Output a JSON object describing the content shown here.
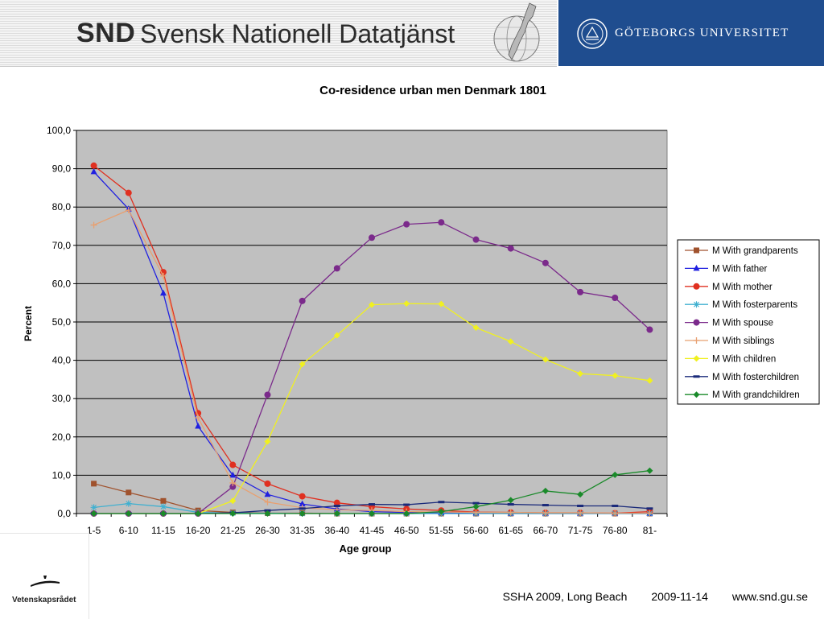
{
  "header": {
    "snd_abbr": "SND",
    "snd_name": "Svensk Nationell Datatjänst",
    "university": "GÖTEBORGS UNIVERSITET"
  },
  "footer": {
    "conference": "SSHA 2009, Long Beach",
    "date": "2009-11-14",
    "url": "www.snd.gu.se",
    "funder": "Vetenskapsrådet"
  },
  "colors": {
    "plot_bg": "#c0c0c0",
    "header_blue": "#1f4d8f"
  },
  "chart_data": {
    "type": "line",
    "title": "Co-residence urban men Denmark 1801",
    "xlabel": "Age group",
    "ylabel": "Percent",
    "ylim": [
      0,
      100
    ],
    "yticks": [
      "0,0",
      "10,0",
      "20,0",
      "30,0",
      "40,0",
      "50,0",
      "60,0",
      "70,0",
      "80,0",
      "90,0",
      "100,0"
    ],
    "grid": true,
    "legend_position": "right",
    "categories": [
      "1-5",
      "6-10",
      "11-15",
      "16-20",
      "21-25",
      "26-30",
      "31-35",
      "36-40",
      "41-45",
      "46-50",
      "51-55",
      "56-60",
      "61-65",
      "66-70",
      "71-75",
      "76-80",
      "81-"
    ],
    "series": [
      {
        "name": "M With grandparents",
        "color": "#a0522d",
        "marker": "square",
        "values": [
          7.8,
          5.5,
          3.3,
          0.8,
          0.3,
          0.1,
          0.1,
          0.0,
          0.0,
          0.0,
          0.0,
          0.0,
          0.0,
          0.0,
          0.0,
          0.0,
          0.0
        ]
      },
      {
        "name": "M With father",
        "color": "#2020e0",
        "marker": "triangle",
        "values": [
          89.2,
          79.5,
          57.5,
          22.8,
          10.0,
          5.0,
          2.5,
          1.2,
          0.5,
          0.3,
          0.2,
          0.1,
          0.0,
          0.0,
          0.0,
          0.0,
          0.0
        ]
      },
      {
        "name": "M With mother",
        "color": "#e03020",
        "marker": "circle",
        "values": [
          90.8,
          83.7,
          63.0,
          26.2,
          12.7,
          7.8,
          4.5,
          2.8,
          1.8,
          1.2,
          0.8,
          0.4,
          0.3,
          0.2,
          0.2,
          0.1,
          0.5
        ]
      },
      {
        "name": "M With fosterparents",
        "color": "#40b0d0",
        "marker": "star",
        "values": [
          1.6,
          2.6,
          1.8,
          0.3,
          0.1,
          0.1,
          0.0,
          0.0,
          0.0,
          0.0,
          0.0,
          0.0,
          0.0,
          0.0,
          0.0,
          0.0,
          0.0
        ]
      },
      {
        "name": "M With spouse",
        "color": "#7b2a8b",
        "marker": "circle",
        "values": [
          0.0,
          0.0,
          0.0,
          0.0,
          7.0,
          31.0,
          55.5,
          64.0,
          72.0,
          75.5,
          76.0,
          71.5,
          69.2,
          65.4,
          57.8,
          56.3,
          48.0
        ]
      },
      {
        "name": "M With siblings",
        "color": "#e8a070",
        "marker": "plus",
        "values": [
          75.3,
          79.2,
          62.0,
          25.0,
          8.0,
          3.0,
          1.5,
          1.0,
          0.8,
          0.5,
          0.4,
          0.3,
          0.3,
          0.2,
          0.2,
          0.1,
          0.1
        ]
      },
      {
        "name": "M With children",
        "color": "#f0f020",
        "marker": "diamond",
        "values": [
          0.0,
          0.0,
          0.0,
          0.0,
          3.3,
          18.8,
          39.0,
          46.5,
          54.5,
          54.8,
          54.7,
          48.5,
          44.9,
          40.2,
          36.5,
          36.0,
          34.7
        ]
      },
      {
        "name": "M With fosterchildren",
        "color": "#1a2a7a",
        "marker": "dash",
        "values": [
          0.0,
          0.0,
          0.0,
          0.0,
          0.2,
          0.8,
          1.3,
          2.0,
          2.4,
          2.3,
          3.0,
          2.7,
          2.4,
          2.2,
          2.0,
          2.0,
          1.3
        ]
      },
      {
        "name": "M With grandchildren",
        "color": "#1a8a2a",
        "marker": "diamond",
        "values": [
          0.0,
          0.0,
          0.0,
          0.0,
          0.0,
          0.0,
          0.0,
          0.0,
          0.0,
          0.0,
          0.5,
          1.8,
          3.5,
          5.9,
          5.0,
          10.1,
          11.2
        ]
      }
    ]
  }
}
